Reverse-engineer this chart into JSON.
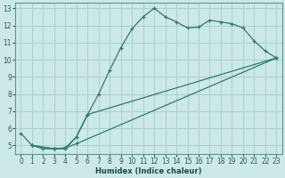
{
  "xlabel": "Humidex (Indice chaleur)",
  "bg_color": "#cce8e8",
  "grid_color": "#aacfcf",
  "line_color": "#2d7a6e",
  "xlim": [
    -0.5,
    23.5
  ],
  "ylim": [
    4.5,
    13.3
  ],
  "xticks": [
    0,
    1,
    2,
    3,
    4,
    5,
    6,
    7,
    8,
    9,
    10,
    11,
    12,
    13,
    14,
    15,
    16,
    17,
    18,
    19,
    20,
    21,
    22,
    23
  ],
  "yticks": [
    5,
    6,
    7,
    8,
    9,
    10,
    11,
    12,
    13
  ],
  "line1": {
    "x": [
      0,
      1,
      2,
      3,
      4,
      5,
      6,
      7,
      8,
      9,
      10,
      11,
      12,
      13,
      14,
      15,
      16,
      17,
      18,
      19,
      20,
      21,
      22,
      23
    ],
    "y": [
      5.7,
      5.0,
      4.8,
      4.8,
      4.8,
      5.5,
      6.8,
      8.0,
      9.4,
      10.7,
      11.8,
      12.5,
      13.0,
      12.5,
      12.2,
      11.85,
      11.9,
      12.3,
      12.2,
      12.1,
      11.85,
      11.1,
      10.5,
      10.1
    ]
  },
  "line2": {
    "x": [
      1,
      3,
      4,
      5,
      6,
      23
    ],
    "y": [
      5.0,
      4.8,
      4.85,
      5.5,
      6.8,
      10.1
    ]
  },
  "line3": {
    "x": [
      1,
      3,
      4,
      5,
      23
    ],
    "y": [
      5.0,
      4.8,
      4.85,
      5.1,
      10.1
    ]
  }
}
